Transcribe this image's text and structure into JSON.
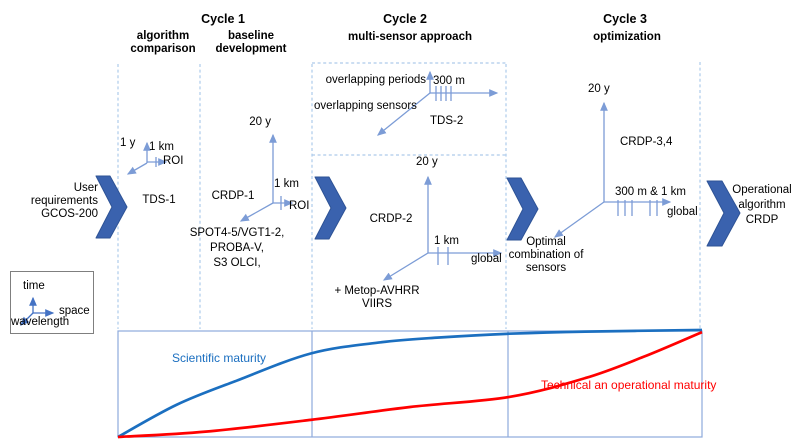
{
  "colors": {
    "chevron": "#3a62ae",
    "chevronedge": "#2e5396",
    "line": "#7c9cd6",
    "legendline": "#4472c4",
    "dash": "#aecbeb",
    "frame": "#8eaadb",
    "curveblue": "#1b6fc0",
    "curvered": "#ff0000"
  },
  "titles": {
    "cycle1": "Cycle 1",
    "cycle1_col1": "algorithm\ncomparison",
    "cycle1_col2": "baseline\ndevelopment",
    "cycle2": "Cycle 2",
    "cycle2_sub": "multi-sensor approach",
    "cycle3": "Cycle 3",
    "cycle3_sub": "optimization"
  },
  "flow": {
    "input": "User requirements\nGCOS-200",
    "output": "Operational\nalgorithm\nCRDP"
  },
  "tds1": {
    "label": "TDS-1",
    "time": "1 y",
    "space": "1 km",
    "roi": "ROI"
  },
  "crdp1": {
    "label": "CRDP-1",
    "time": "20 y",
    "space": "1 km",
    "roi": "ROI",
    "sensors": "SPOT4-5/VGT1-2,\nPROBA-V,\nS3 OLCI,"
  },
  "tds2": {
    "label": "TDS-2",
    "periods": "overlapping periods",
    "resolution": "300 m",
    "sensors": "overlapping sensors"
  },
  "crdp2": {
    "label": "CRDP-2",
    "time": "20 y",
    "space": "1 km",
    "extent": "global",
    "sensors": "+ Metop-AVHRR\nVIIRS"
  },
  "crdp34": {
    "label": "CRDP-3,4",
    "time": "20 y",
    "space": "300 m & 1 km",
    "extent": "global",
    "optimal": "Optimal\ncombination of\nsensors"
  },
  "legend": {
    "time": "time",
    "space": "space",
    "wavelength": "wavelength"
  },
  "chart": {
    "scientific_label": "Scientific maturity",
    "technical_label": "Technical an operational maturity"
  },
  "chart_data": {
    "type": "line",
    "title": "",
    "axes_visible": false,
    "x_range": [
      0,
      1
    ],
    "y_range": [
      0,
      1
    ],
    "legend_position": "inline-labels",
    "series": [
      {
        "name": "Scientific maturity",
        "color": "#1b6fc0",
        "points": [
          [
            0,
            0
          ],
          [
            0.1,
            0.3
          ],
          [
            0.2,
            0.52
          ],
          [
            0.33,
            0.78
          ],
          [
            0.45,
            0.885
          ],
          [
            0.55,
            0.93
          ],
          [
            0.67,
            0.965
          ],
          [
            0.8,
            0.985
          ],
          [
            1,
            1
          ]
        ]
      },
      {
        "name": "Technical an operational maturity",
        "color": "#ff0000",
        "points": [
          [
            0,
            0
          ],
          [
            0.15,
            0.05
          ],
          [
            0.33,
            0.16
          ],
          [
            0.5,
            0.28
          ],
          [
            0.67,
            0.375
          ],
          [
            0.8,
            0.55
          ],
          [
            0.9,
            0.75
          ],
          [
            1,
            0.98
          ]
        ]
      }
    ]
  }
}
